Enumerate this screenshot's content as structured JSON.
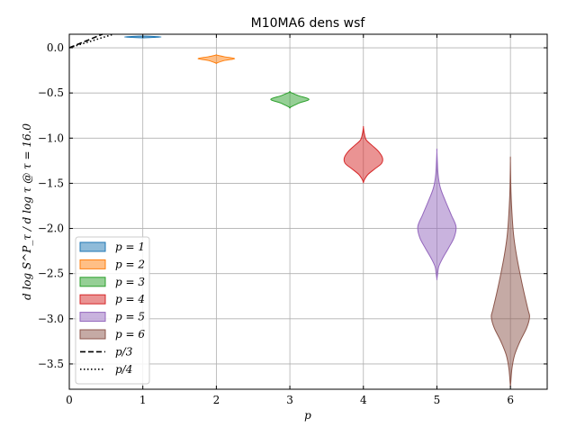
{
  "chart_data": {
    "type": "violin",
    "title": "M10MA6 dens wsf",
    "xlabel": "p",
    "ylabel": "d log S^P_τ / d log τ @ τ = 16.0",
    "xlim": [
      0,
      6.5
    ],
    "ylim": [
      -3.78,
      0.15
    ],
    "grid": true,
    "xticks": [
      0,
      1,
      2,
      3,
      4,
      5,
      6
    ],
    "xtick_labels": [
      "0",
      "1",
      "2",
      "3",
      "4",
      "5",
      "6"
    ],
    "yticks": [
      0.0,
      -0.5,
      -1.0,
      -1.5,
      -2.0,
      -2.5,
      -3.0,
      -3.5
    ],
    "ytick_labels": [
      "0.0",
      "−0.5",
      "−1.0",
      "−1.5",
      "−2.0",
      "−2.5",
      "−3.0",
      "−3.5"
    ],
    "legend_position": "lower-left",
    "series": [
      {
        "name": "p = 1",
        "p": 1,
        "color": "#1f77b4",
        "max_half_width": 0.25,
        "profile": [
          [
            0.13,
            0.0
          ],
          [
            0.125,
            0.6
          ],
          [
            0.12,
            1.0
          ],
          [
            0.115,
            0.6
          ],
          [
            0.11,
            0.0
          ]
        ]
      },
      {
        "name": "p = 2",
        "p": 2,
        "color": "#ff7f0e",
        "max_half_width": 0.25,
        "profile": [
          [
            -0.08,
            0.0
          ],
          [
            -0.1,
            0.45
          ],
          [
            -0.12,
            1.0
          ],
          [
            -0.14,
            0.45
          ],
          [
            -0.17,
            0.0
          ]
        ]
      },
      {
        "name": "p = 3",
        "p": 3,
        "color": "#2ca02c",
        "max_half_width": 0.26,
        "profile": [
          [
            -0.49,
            0.0
          ],
          [
            -0.53,
            0.45
          ],
          [
            -0.57,
            1.0
          ],
          [
            -0.61,
            0.5
          ],
          [
            -0.66,
            0.0
          ]
        ]
      },
      {
        "name": "p = 4",
        "p": 4,
        "color": "#d62728",
        "max_half_width": 0.26,
        "profile": [
          [
            -0.88,
            0.0
          ],
          [
            -0.95,
            0.05
          ],
          [
            -1.02,
            0.15
          ],
          [
            -1.08,
            0.45
          ],
          [
            -1.15,
            0.8
          ],
          [
            -1.22,
            1.0
          ],
          [
            -1.28,
            0.95
          ],
          [
            -1.34,
            0.6
          ],
          [
            -1.4,
            0.25
          ],
          [
            -1.45,
            0.08
          ],
          [
            -1.49,
            0.0
          ]
        ]
      },
      {
        "name": "p = 5",
        "p": 5,
        "color": "#9467bd",
        "max_half_width": 0.26,
        "profile": [
          [
            -1.15,
            0.0
          ],
          [
            -1.4,
            0.06
          ],
          [
            -1.55,
            0.18
          ],
          [
            -1.7,
            0.45
          ],
          [
            -1.85,
            0.75
          ],
          [
            -1.98,
            1.0
          ],
          [
            -2.1,
            0.9
          ],
          [
            -2.22,
            0.6
          ],
          [
            -2.33,
            0.3
          ],
          [
            -2.42,
            0.1
          ],
          [
            -2.5,
            0.04
          ],
          [
            -2.56,
            0.0
          ]
        ]
      },
      {
        "name": "p = 6",
        "p": 6,
        "color": "#8c564b",
        "max_half_width": 0.26,
        "profile": [
          [
            -1.25,
            0.0
          ],
          [
            -1.6,
            0.03
          ],
          [
            -1.9,
            0.1
          ],
          [
            -2.1,
            0.18
          ],
          [
            -2.3,
            0.32
          ],
          [
            -2.5,
            0.5
          ],
          [
            -2.7,
            0.7
          ],
          [
            -2.9,
            0.92
          ],
          [
            -2.98,
            1.0
          ],
          [
            -3.1,
            0.85
          ],
          [
            -3.25,
            0.5
          ],
          [
            -3.4,
            0.22
          ],
          [
            -3.55,
            0.08
          ],
          [
            -3.7,
            0.02
          ],
          [
            -3.75,
            0.0
          ]
        ]
      }
    ],
    "reference_lines": [
      {
        "name": "p/3",
        "style": "dashed",
        "slope_den": 3
      },
      {
        "name": "p/4",
        "style": "dotted",
        "slope_den": 4
      }
    ]
  },
  "legend": {
    "entries": [
      "p = 1",
      "p = 2",
      "p = 3",
      "p = 4",
      "p = 5",
      "p = 6",
      "p/3",
      "p/4"
    ]
  }
}
